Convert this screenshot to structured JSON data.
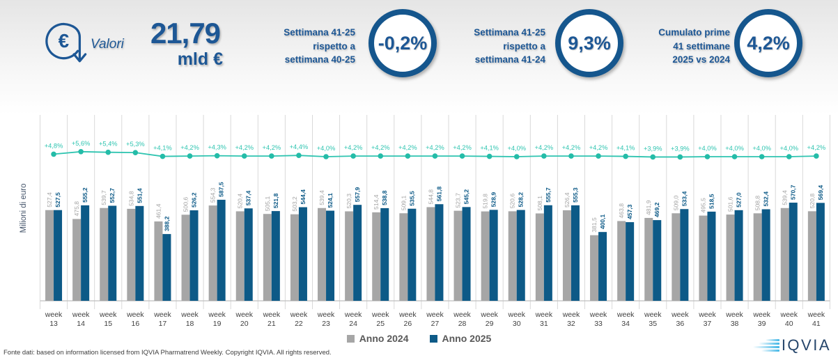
{
  "header": {
    "valori_label": "Valori",
    "total_value": "21,79",
    "total_unit": "mld €",
    "kpis": [
      {
        "lines": [
          "Settimana 41-25",
          "rispetto a",
          "settimana 40-25"
        ],
        "value": "-0,2%"
      },
      {
        "lines": [
          "Settimana 41-25",
          "rispetto a",
          "settimana 41-24"
        ],
        "value": "9,3%"
      },
      {
        "lines": [
          "Cumulato prime",
          "41 settimane",
          "2025 vs 2024"
        ],
        "value": "4,2%"
      }
    ]
  },
  "chart_data": {
    "type": "bar",
    "ylabel": "Milioni di euro",
    "x_prefix": "week",
    "weeks": [
      13,
      14,
      15,
      16,
      17,
      18,
      19,
      20,
      21,
      22,
      23,
      24,
      25,
      26,
      27,
      28,
      29,
      30,
      31,
      32,
      33,
      34,
      35,
      36,
      37,
      38,
      39,
      40,
      41
    ],
    "series": [
      {
        "name": "Anno 2024",
        "color": "#a6a6a6",
        "values": [
          527.4,
          475.8,
          539.7,
          534.8,
          461.4,
          500.6,
          554.3,
          520.4,
          505.1,
          503.2,
          539.4,
          520.3,
          514.4,
          509.1,
          544.8,
          523.7,
          519.8,
          520.6,
          508.1,
          526.4,
          381.5,
          463.8,
          481.9,
          509.0,
          495.5,
          501.6,
          508.8,
          539.4,
          520.8
        ]
      },
      {
        "name": "Anno 2025",
        "color": "#0d5a87",
        "values": [
          527.5,
          555.2,
          552.7,
          551.4,
          388.2,
          526.2,
          587.5,
          537.4,
          521.8,
          544.4,
          524.1,
          557.9,
          538.8,
          535.5,
          561.8,
          545.2,
          528.9,
          528.2,
          555.7,
          555.3,
          400.1,
          457.3,
          469.2,
          533.4,
          518.5,
          527.0,
          532.4,
          570.7,
          569.4
        ]
      }
    ],
    "pct_line": {
      "color": "#2ec4b0",
      "values": [
        4.8,
        5.6,
        5.4,
        5.3,
        4.1,
        4.2,
        4.3,
        4.2,
        4.2,
        4.4,
        4.0,
        4.2,
        4.2,
        4.2,
        4.2,
        4.2,
        4.1,
        4.0,
        4.2,
        4.2,
        4.2,
        4.1,
        3.9,
        3.9,
        4.0,
        4.0,
        4.0,
        4.0,
        4.2
      ],
      "labels": [
        "+4,8%",
        "+5,6%",
        "+5,4%",
        "+5,3%",
        "+4,1%",
        "+4,2%",
        "+4,3%",
        "+4,2%",
        "+4,2%",
        "+4,4%",
        "+4,0%",
        "+4,2%",
        "+4,2%",
        "+4,2%",
        "+4,2%",
        "+4,2%",
        "+4,1%",
        "+4,0%",
        "+4,2%",
        "+4,2%",
        "+4,2%",
        "+4,1%",
        "+3,9%",
        "+3,9%",
        "+4,0%",
        "+4,0%",
        "+4,0%",
        "+4,0%",
        "+4,2%"
      ]
    },
    "ylim": [
      0,
      650
    ],
    "grid": "vertical",
    "legend_position": "bottom"
  },
  "footer": {
    "source_text": "Fonte dati: based on information licensed from IQVIA Pharmatrend Weekly. Copyright IQVIA. All rights reserved.",
    "logo_text": "IQVIA"
  },
  "colors": {
    "accent_blue": "#1d5795",
    "kpi_ring": "#15568d",
    "bar_2024": "#a6a6a6",
    "bar_2025": "#0d5a87",
    "teal": "#2ec4b0"
  }
}
